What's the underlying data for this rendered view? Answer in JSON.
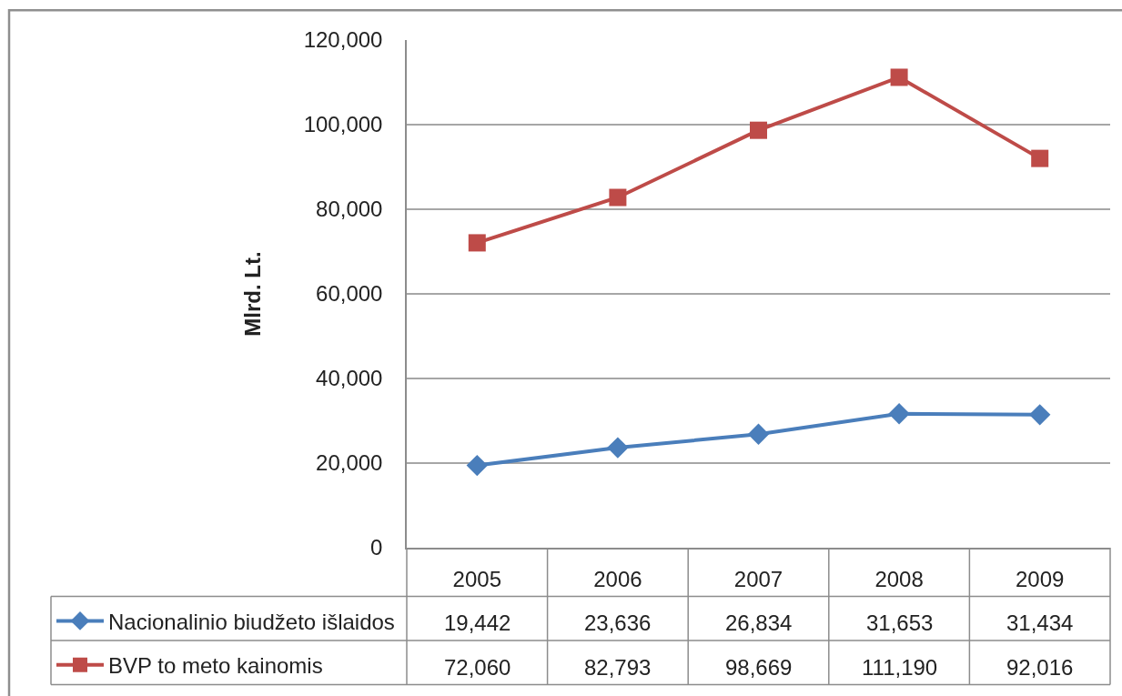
{
  "chart_data": {
    "type": "line",
    "ylabel": "Mlrd. Lt.",
    "categories": [
      "2005",
      "2006",
      "2007",
      "2008",
      "2009"
    ],
    "series": [
      {
        "name": "Nacionalinio biudžeto išlaidos",
        "color": "#4a7ebb",
        "marker": "diamond",
        "values": [
          19442,
          23636,
          26834,
          31653,
          31434
        ],
        "value_labels": [
          "19,442",
          "23,636",
          "26,834",
          "31,653",
          "31,434"
        ]
      },
      {
        "name": "BVP to meto kainomis",
        "color": "#be4b48",
        "marker": "square",
        "values": [
          72060,
          82793,
          98669,
          111190,
          92016
        ],
        "value_labels": [
          "72,060",
          "82,793",
          "98,669",
          "111,190",
          "92,016"
        ]
      }
    ],
    "ylim": [
      0,
      120000
    ],
    "yticks": [
      0,
      {
        "value": 20000,
        "label": "20,000"
      },
      {
        "value": 40000,
        "label": "40,000"
      },
      {
        "value": 60000,
        "label": "60,000"
      },
      {
        "value": 80000,
        "label": "80,000"
      },
      {
        "value": 100000,
        "label": "100,000"
      },
      {
        "value": 120000,
        "label": "120,000"
      }
    ],
    "grid": "y",
    "legend": "bottom left",
    "line_style": "solid"
  }
}
